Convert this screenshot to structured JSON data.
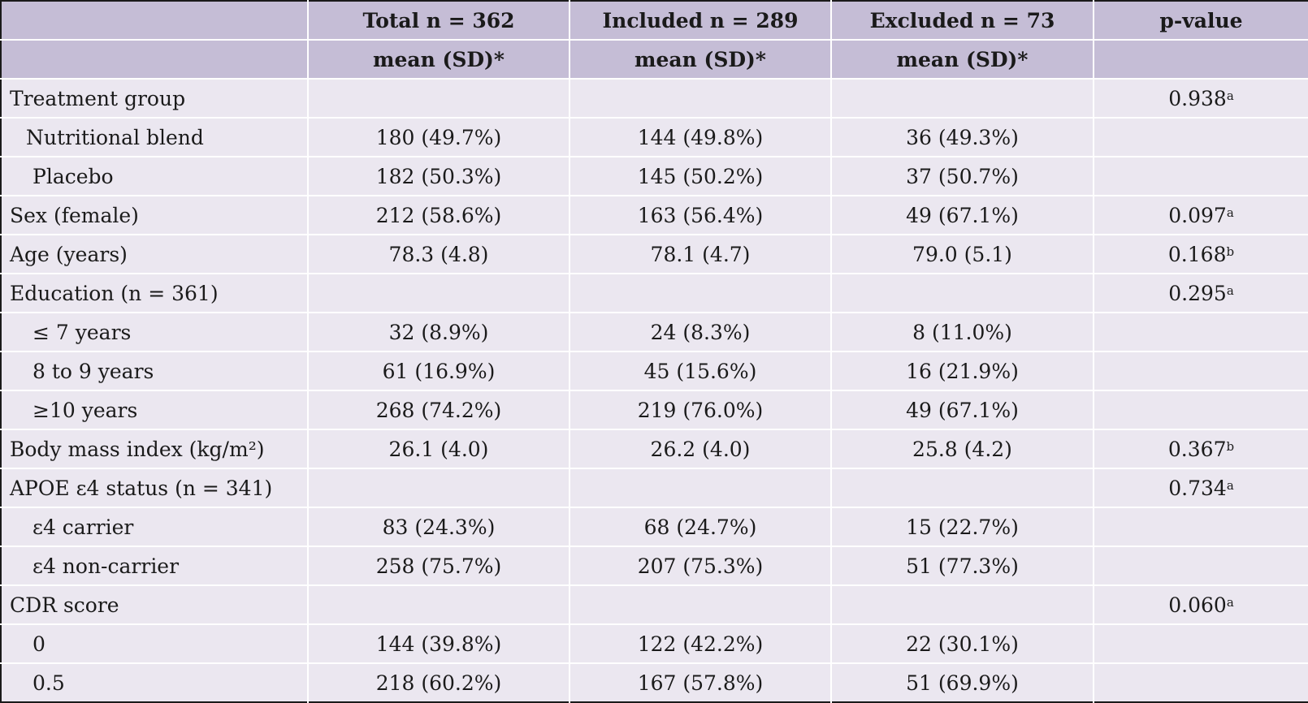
{
  "table": {
    "header_row1": [
      "",
      "Total n = 362",
      "Included n = 289",
      "Excluded n = 73",
      "p-value"
    ],
    "header_row2": [
      "",
      "mean (SD)*",
      "mean (SD)*",
      "mean (SD)*",
      ""
    ],
    "rows": [
      {
        "label": "Treatment group",
        "indent": 0,
        "total": "",
        "included": "",
        "excluded": "",
        "p": "0.938",
        "p_sup": "a"
      },
      {
        "label": "Nutritional blend",
        "indent": 1,
        "total": "180 (49.7%)",
        "included": "144 (49.8%)",
        "excluded": "36 (49.3%)",
        "p": "",
        "p_sup": ""
      },
      {
        "label": "Placebo",
        "indent": 2,
        "total": "182 (50.3%)",
        "included": "145 (50.2%)",
        "excluded": "37 (50.7%)",
        "p": "",
        "p_sup": ""
      },
      {
        "label": "Sex (female)",
        "indent": 0,
        "total": "212 (58.6%)",
        "included": "163 (56.4%)",
        "excluded": "49 (67.1%)",
        "p": "0.097",
        "p_sup": "a"
      },
      {
        "label": "Age (years)",
        "indent": 0,
        "total": "78.3 (4.8)",
        "included": "78.1 (4.7)",
        "excluded": "79.0 (5.1)",
        "p": "0.168",
        "p_sup": "b"
      },
      {
        "label": "Education (n = 361)",
        "indent": 0,
        "total": "",
        "included": "",
        "excluded": "",
        "p": "0.295",
        "p_sup": "a"
      },
      {
        "label": "≤ 7 years",
        "indent": 2,
        "total": "32 (8.9%)",
        "included": "24 (8.3%)",
        "excluded": "8 (11.0%)",
        "p": "",
        "p_sup": ""
      },
      {
        "label": "8 to 9 years",
        "indent": 2,
        "total": "61 (16.9%)",
        "included": "45 (15.6%)",
        "excluded": "16 (21.9%)",
        "p": "",
        "p_sup": ""
      },
      {
        "label": "≥10 years",
        "indent": 2,
        "total": "268 (74.2%)",
        "included": "219 (76.0%)",
        "excluded": "49 (67.1%)",
        "p": "",
        "p_sup": ""
      },
      {
        "label": "Body mass index (kg/m²)",
        "indent": 0,
        "total": "26.1 (4.0)",
        "included": "26.2 (4.0)",
        "excluded": "25.8 (4.2)",
        "p": "0.367",
        "p_sup": "b"
      },
      {
        "label": "APOE ε4 status (n = 341)",
        "indent": 0,
        "total": "",
        "included": "",
        "excluded": "",
        "p": "0.734",
        "p_sup": "a"
      },
      {
        "label": "ε4 carrier",
        "indent": 2,
        "total": "83 (24.3%)",
        "included": "68 (24.7%)",
        "excluded": "15 (22.7%)",
        "p": "",
        "p_sup": ""
      },
      {
        "label": "ε4 non-carrier",
        "indent": 2,
        "total": "258 (75.7%)",
        "included": "207 (75.3%)",
        "excluded": "51 (77.3%)",
        "p": "",
        "p_sup": ""
      },
      {
        "label": "CDR score",
        "indent": 0,
        "total": "",
        "included": "",
        "excluded": "",
        "p": "0.060",
        "p_sup": "a"
      },
      {
        "label": "0",
        "indent": 2,
        "total": "144 (39.8%)",
        "included": "122 (42.2%)",
        "excluded": "22 (30.1%)",
        "p": "",
        "p_sup": ""
      },
      {
        "label": "0.5",
        "indent": 2,
        "total": "218 (60.2%)",
        "included": "167 (57.8%)",
        "excluded": "51 (69.9%)",
        "p": "",
        "p_sup": ""
      }
    ]
  },
  "colors": {
    "header_bg": "#c5bdd6",
    "body_bg": "#ebe7f0"
  }
}
